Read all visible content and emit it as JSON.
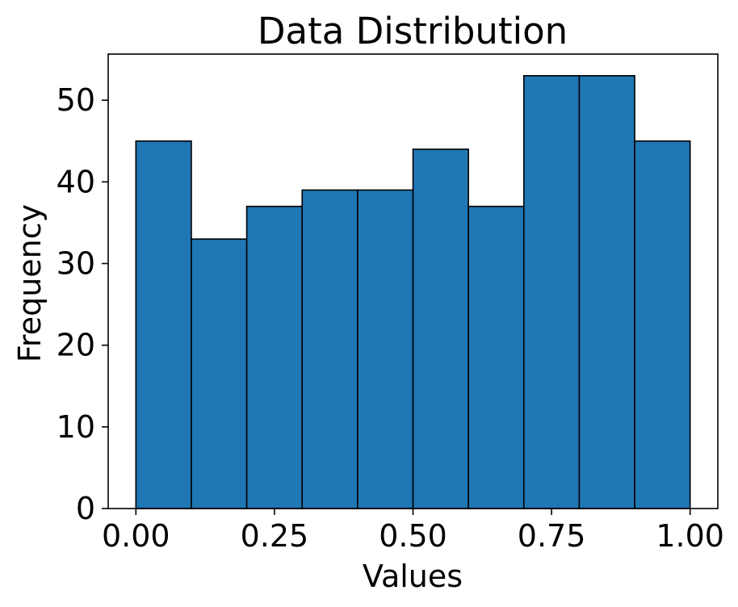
{
  "chart_data": {
    "type": "bar",
    "title": "Data Distribution",
    "xlabel": "Values",
    "ylabel": "Frequency",
    "bin_edges": [
      0.0,
      0.1,
      0.2,
      0.3,
      0.4,
      0.5,
      0.6,
      0.7,
      0.8,
      0.9,
      1.0
    ],
    "values": [
      45,
      33,
      37,
      39,
      39,
      44,
      37,
      53,
      53,
      45
    ],
    "xlim": [
      -0.05,
      1.05
    ],
    "ylim": [
      0,
      55.65
    ],
    "xticks": [
      0.0,
      0.25,
      0.5,
      0.75,
      1.0
    ],
    "xtick_labels": [
      "0.00",
      "0.25",
      "0.50",
      "0.75",
      "1.00"
    ],
    "yticks": [
      0,
      10,
      20,
      30,
      40,
      50
    ],
    "ytick_labels": [
      "0",
      "10",
      "20",
      "30",
      "40",
      "50"
    ],
    "grid": false,
    "bar_color": "#1f77b4",
    "edge_color": "#000000"
  }
}
